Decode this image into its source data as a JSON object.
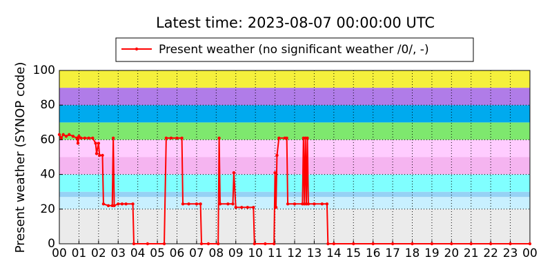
{
  "chart_data": {
    "type": "line",
    "title": "Latest time: 2023-08-07 00:00:00 UTC",
    "y_label": "Present weather (SYNOP code)",
    "x": [
      0,
      0.1,
      0.2,
      0.35,
      0.5,
      0.7,
      0.9,
      0.95,
      1.0,
      1.1,
      1.3,
      1.5,
      1.7,
      1.85,
      1.9,
      2.0,
      2.05,
      2.2,
      2.25,
      2.5,
      2.7,
      2.75,
      2.8,
      3.0,
      3.2,
      3.4,
      3.75,
      3.8,
      4.5,
      5.35,
      5.45,
      5.7,
      6.0,
      6.25,
      6.3,
      6.6,
      7.0,
      7.2,
      7.25,
      7.6,
      8.1,
      8.15,
      8.2,
      8.6,
      8.85,
      8.9,
      9.0,
      9.3,
      9.6,
      9.9,
      9.95,
      10.5,
      10.95,
      11.0,
      11.05,
      11.1,
      11.2,
      11.5,
      11.6,
      11.65,
      12.0,
      12.4,
      12.45,
      12.5,
      12.55,
      12.6,
      12.65,
      12.7,
      13.0,
      13.4,
      13.65,
      13.7,
      14,
      15,
      16,
      17,
      18,
      19,
      20,
      21,
      22,
      23,
      24
    ],
    "series": [
      {
        "name": "Present weather (no significant weather /0/, -)",
        "color": "#ff0000",
        "values": [
          63,
          61,
          63,
          62,
          63,
          62,
          61,
          58,
          62,
          61,
          61,
          61,
          61,
          58,
          52,
          58,
          51,
          51,
          23,
          22,
          22,
          61,
          22,
          23,
          23,
          23,
          23,
          0,
          0,
          0,
          61,
          61,
          61,
          61,
          23,
          23,
          23,
          23,
          0,
          0,
          0,
          61,
          23,
          23,
          23,
          41,
          21,
          21,
          21,
          21,
          0,
          0,
          0,
          41,
          21,
          51,
          61,
          61,
          61,
          23,
          23,
          23,
          61,
          23,
          61,
          23,
          61,
          23,
          23,
          23,
          23,
          0,
          0,
          0,
          0,
          0,
          0,
          0,
          0,
          0,
          0,
          0,
          0
        ]
      }
    ],
    "xlim": [
      0,
      24
    ],
    "xticks": [
      {
        "value": 0,
        "label": "00"
      },
      {
        "value": 1,
        "label": "01"
      },
      {
        "value": 2,
        "label": "02"
      },
      {
        "value": 3,
        "label": "03"
      },
      {
        "value": 4,
        "label": "04"
      },
      {
        "value": 5,
        "label": "05"
      },
      {
        "value": 6,
        "label": "06"
      },
      {
        "value": 7,
        "label": "07"
      },
      {
        "value": 8,
        "label": "08"
      },
      {
        "value": 9,
        "label": "09"
      },
      10,
      11,
      12,
      13,
      14,
      15,
      16,
      17,
      18,
      19,
      20,
      21,
      22,
      23,
      {
        "value": 24,
        "label": "00"
      }
    ],
    "ylim": [
      0,
      100
    ],
    "yticks": [
      0,
      20,
      40,
      60,
      80,
      100
    ],
    "grid": true,
    "bands": [
      {
        "from": 0,
        "to": 20,
        "color": "#ebebeb"
      },
      {
        "from": 20,
        "to": 27,
        "color": "#c8f0ff"
      },
      {
        "from": 27,
        "to": 30,
        "color": "#96d2f5"
      },
      {
        "from": 30,
        "to": 40,
        "color": "#80ffff"
      },
      {
        "from": 40,
        "to": 50,
        "color": "#f5b4f0"
      },
      {
        "from": 50,
        "to": 60,
        "color": "#ffccff"
      },
      {
        "from": 60,
        "to": 70,
        "color": "#7ee86e"
      },
      {
        "from": 70,
        "to": 80,
        "color": "#00aaee"
      },
      {
        "from": 80,
        "to": 90,
        "color": "#b07ce8"
      },
      {
        "from": 90,
        "to": 100,
        "color": "#f5f03c"
      }
    ]
  }
}
